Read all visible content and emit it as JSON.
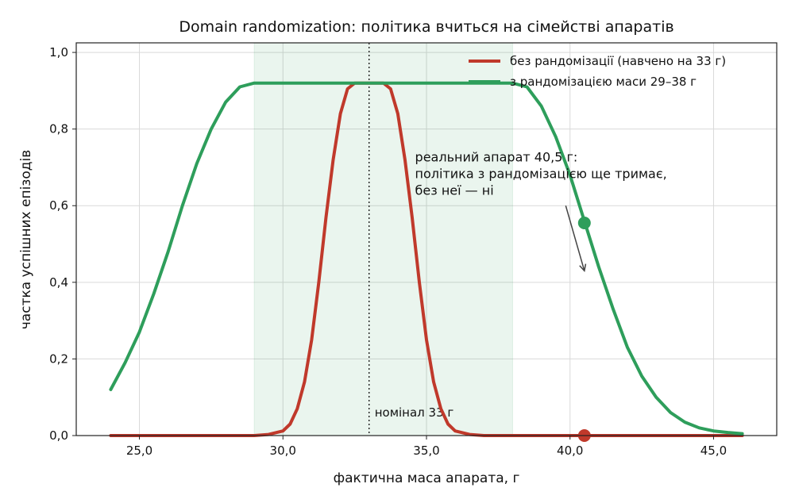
{
  "chart_data": {
    "type": "line",
    "title": "Domain randomization: політика вчиться на сімействі апаратів",
    "xlabel": "фактична маса апарата, г",
    "ylabel": "частка успішних епізодів",
    "xlim": [
      22.8,
      47.2
    ],
    "ylim": [
      0,
      1.025
    ],
    "xticks": [
      25,
      30,
      35,
      40,
      45
    ],
    "xtick_labels": [
      "25,0",
      "30,0",
      "35,0",
      "40,0",
      "45,0"
    ],
    "yticks": [
      0,
      0.2,
      0.4,
      0.6,
      0.8,
      1.0
    ],
    "ytick_labels": [
      "0,0",
      "0,2",
      "0,4",
      "0,6",
      "0,8",
      "1,0"
    ],
    "grid": true,
    "legend_position": "top-right",
    "shaded_region": {
      "x": [
        29,
        38
      ]
    },
    "nominal_line": {
      "x": 33,
      "label": "номінал 33 г"
    },
    "series": [
      {
        "name": "без рандомізації (навчено на 33 г)",
        "color": "#c0392b",
        "x": [
          24,
          29,
          29.5,
          30,
          30.25,
          30.5,
          30.75,
          31,
          31.25,
          31.5,
          31.75,
          32,
          32.25,
          32.5,
          32.75,
          33,
          33.25,
          33.5,
          33.75,
          34,
          34.25,
          34.5,
          34.75,
          35,
          35.25,
          35.5,
          35.75,
          36,
          36.5,
          37,
          46
        ],
        "y": [
          0,
          0,
          0.003,
          0.012,
          0.03,
          0.07,
          0.14,
          0.25,
          0.4,
          0.57,
          0.72,
          0.84,
          0.905,
          0.92,
          0.92,
          0.92,
          0.92,
          0.92,
          0.905,
          0.84,
          0.72,
          0.57,
          0.4,
          0.25,
          0.14,
          0.07,
          0.03,
          0.012,
          0.003,
          0,
          0
        ]
      },
      {
        "name": "з рандомізацією маси 29–38 г",
        "color": "#2e9e5b",
        "x": [
          24,
          24.5,
          25,
          25.5,
          26,
          26.5,
          27,
          27.5,
          28,
          28.5,
          29,
          38,
          38.5,
          39,
          39.5,
          40,
          40.5,
          41,
          41.5,
          42,
          42.5,
          43,
          43.5,
          44,
          44.5,
          45,
          45.5,
          46
        ],
        "y": [
          0.12,
          0.19,
          0.27,
          0.37,
          0.48,
          0.6,
          0.71,
          0.8,
          0.87,
          0.91,
          0.92,
          0.92,
          0.91,
          0.86,
          0.78,
          0.68,
          0.56,
          0.44,
          0.33,
          0.23,
          0.155,
          0.1,
          0.06,
          0.035,
          0.02,
          0.012,
          0.008,
          0.005
        ]
      }
    ],
    "markers": [
      {
        "x": 40.5,
        "y": 0.555,
        "color": "#2e9e5b"
      },
      {
        "x": 40.5,
        "y": 0.0,
        "color": "#c0392b"
      }
    ],
    "annotation": {
      "lines": [
        "реальний апарат 40,5 г:",
        "політика з рандомізацією ще тримає,",
        "без неї — ні"
      ],
      "text_x": 34.6,
      "text_y": 0.715,
      "arrow_from": [
        39.85,
        0.6
      ],
      "arrow_to": [
        40.5,
        0.43
      ]
    }
  }
}
